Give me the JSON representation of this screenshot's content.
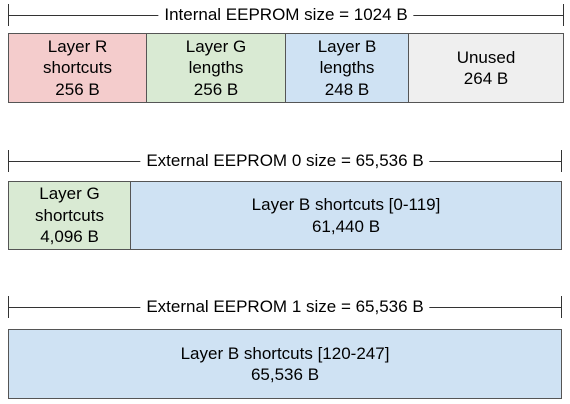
{
  "sections": [
    {
      "label": "Internal EEPROM size = 1024 B",
      "blocks": [
        {
          "lines": [
            "Layer R",
            "shortcuts",
            "256 B"
          ],
          "color": "#f4cccc"
        },
        {
          "lines": [
            "Layer G",
            "lengths",
            "256 B"
          ],
          "color": "#d9ead3"
        },
        {
          "lines": [
            "Layer B",
            "lengths",
            "248 B"
          ],
          "color": "#cfe2f3"
        },
        {
          "lines": [
            "Unused",
            "264 B"
          ],
          "color": "#efefef"
        }
      ]
    },
    {
      "label": "External EEPROM 0 size = 65,536 B",
      "blocks": [
        {
          "lines": [
            "Layer G",
            "shortcuts",
            "4,096 B"
          ],
          "color": "#d9ead3"
        },
        {
          "lines": [
            "Layer B shortcuts [0-119]",
            "61,440 B"
          ],
          "color": "#cfe2f3"
        }
      ]
    },
    {
      "label": "External EEPROM 1 size = 65,536 B",
      "blocks": [
        {
          "lines": [
            "Layer B shortcuts [120-247]",
            "65,536 B"
          ],
          "color": "#cfe2f3"
        }
      ]
    }
  ]
}
